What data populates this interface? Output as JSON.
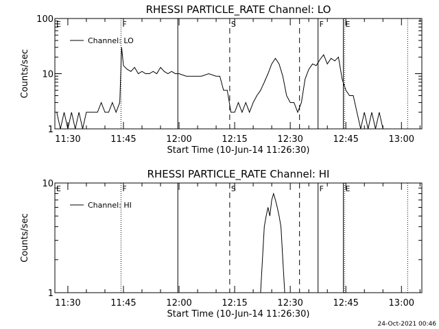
{
  "footer": {
    "timestamp": "24-Oct-2021 00:46"
  },
  "chart_data": [
    {
      "type": "line",
      "title": "RHESSI PARTICLE_RATE Channel: LO",
      "xlabel": "Start Time (10-Jun-14 11:26:30)",
      "ylabel": "Counts/sec",
      "y_scale": "log",
      "ylim": [
        1,
        100
      ],
      "y_ticks": [
        {
          "value": 1,
          "label": "1"
        },
        {
          "value": 10,
          "label": "10"
        },
        {
          "value": 100,
          "label": "100"
        }
      ],
      "xlim": [
        "11:26:30",
        "13:05:30"
      ],
      "x_ticks": [
        "11:30",
        "11:45",
        "12:00",
        "12:15",
        "12:30",
        "12:45",
        "13:00"
      ],
      "legend": {
        "position": "top-left"
      },
      "series": [
        {
          "name": "Channel: LO",
          "points": [
            [
              "11:27:00",
              2
            ],
            [
              "11:28:00",
              1
            ],
            [
              "11:29:00",
              2
            ],
            [
              "11:30:00",
              1
            ],
            [
              "11:31:00",
              2
            ],
            [
              "11:32:00",
              1
            ],
            [
              "11:33:00",
              2
            ],
            [
              "11:34:00",
              1
            ],
            [
              "11:35:00",
              2
            ],
            [
              "11:36:00",
              2
            ],
            [
              "11:37:00",
              2
            ],
            [
              "11:38:00",
              2
            ],
            [
              "11:39:00",
              3
            ],
            [
              "11:40:00",
              2
            ],
            [
              "11:41:00",
              2
            ],
            [
              "11:42:00",
              3
            ],
            [
              "11:43:00",
              2
            ],
            [
              "11:44:00",
              3
            ],
            [
              "11:44:30",
              30
            ],
            [
              "11:45:00",
              14
            ],
            [
              "11:46:00",
              12
            ],
            [
              "11:47:00",
              11
            ],
            [
              "11:48:00",
              13
            ],
            [
              "11:49:00",
              10
            ],
            [
              "11:50:00",
              11
            ],
            [
              "11:51:00",
              10
            ],
            [
              "11:52:00",
              10
            ],
            [
              "11:53:00",
              11
            ],
            [
              "11:54:00",
              10
            ],
            [
              "11:55:00",
              13
            ],
            [
              "11:56:00",
              11
            ],
            [
              "11:57:00",
              10
            ],
            [
              "11:58:00",
              11
            ],
            [
              "11:59:00",
              10
            ],
            [
              "12:00:00",
              10
            ],
            [
              "12:02:00",
              9
            ],
            [
              "12:04:00",
              9
            ],
            [
              "12:06:00",
              9
            ],
            [
              "12:08:00",
              10
            ],
            [
              "12:10:00",
              9
            ],
            [
              "12:11:00",
              9
            ],
            [
              "12:12:00",
              5
            ],
            [
              "12:13:00",
              5
            ],
            [
              "12:14:00",
              2
            ],
            [
              "12:15:00",
              2
            ],
            [
              "12:16:00",
              3
            ],
            [
              "12:17:00",
              2
            ],
            [
              "12:18:00",
              3
            ],
            [
              "12:19:00",
              2
            ],
            [
              "12:20:00",
              3
            ],
            [
              "12:21:00",
              4
            ],
            [
              "12:22:00",
              5
            ],
            [
              "12:23:00",
              7
            ],
            [
              "12:24:00",
              10
            ],
            [
              "12:25:00",
              15
            ],
            [
              "12:26:00",
              19
            ],
            [
              "12:27:00",
              15
            ],
            [
              "12:28:00",
              9
            ],
            [
              "12:29:00",
              4
            ],
            [
              "12:30:00",
              3
            ],
            [
              "12:31:00",
              3
            ],
            [
              "12:32:00",
              2
            ],
            [
              "12:33:00",
              3
            ],
            [
              "12:34:00",
              8
            ],
            [
              "12:35:00",
              12
            ],
            [
              "12:36:00",
              15
            ],
            [
              "12:37:00",
              14
            ],
            [
              "12:38:00",
              18
            ],
            [
              "12:39:00",
              22
            ],
            [
              "12:40:00",
              15
            ],
            [
              "12:41:00",
              19
            ],
            [
              "12:42:00",
              17
            ],
            [
              "12:43:00",
              20
            ],
            [
              "12:44:00",
              8
            ],
            [
              "12:45:00",
              5
            ],
            [
              "12:46:00",
              4
            ],
            [
              "12:47:00",
              4
            ],
            [
              "12:48:00",
              2
            ],
            [
              "12:49:00",
              1
            ],
            [
              "12:50:00",
              2
            ],
            [
              "12:51:00",
              1
            ],
            [
              "12:52:00",
              2
            ],
            [
              "12:53:00",
              1
            ],
            [
              "12:54:00",
              2
            ],
            [
              "12:55:00",
              1
            ]
          ]
        }
      ],
      "markers": [
        {
          "time": "11:44:20",
          "label": "F",
          "style": "dotted"
        },
        {
          "time": "11:59:40",
          "label": "",
          "style": "solid"
        },
        {
          "time": "12:13:40",
          "label": "S",
          "style": "dashed"
        },
        {
          "time": "12:32:30",
          "label": "",
          "style": "dashed"
        },
        {
          "time": "12:37:30",
          "label": "F",
          "style": "solid"
        },
        {
          "time": "12:44:30",
          "label": "E",
          "style": "dotted-solid"
        },
        {
          "time": "13:01:40",
          "label": "",
          "style": "dotted"
        },
        {
          "time": "11:26:30",
          "label": "E",
          "style": "none"
        }
      ]
    },
    {
      "type": "line",
      "title": "RHESSI PARTICLE_RATE Channel: HI",
      "xlabel": "Start Time (10-Jun-14 11:26:30)",
      "ylabel": "Counts/sec",
      "y_scale": "log",
      "ylim": [
        1,
        10
      ],
      "y_ticks": [
        {
          "value": 1,
          "label": "1"
        },
        {
          "value": 10,
          "label": "10"
        }
      ],
      "xlim": [
        "11:26:30",
        "13:05:30"
      ],
      "x_ticks": [
        "11:30",
        "11:45",
        "12:00",
        "12:15",
        "12:30",
        "12:45",
        "13:00"
      ],
      "legend": {
        "position": "top-left"
      },
      "series": [
        {
          "name": "Channel: HI",
          "points": [
            [
              "12:22:00",
              1
            ],
            [
              "12:22:30",
              2
            ],
            [
              "12:23:00",
              4
            ],
            [
              "12:23:30",
              5
            ],
            [
              "12:24:00",
              6
            ],
            [
              "12:24:30",
              5
            ],
            [
              "12:25:00",
              7
            ],
            [
              "12:25:30",
              8
            ],
            [
              "12:26:00",
              7
            ],
            [
              "12:26:30",
              6
            ],
            [
              "12:27:00",
              5
            ],
            [
              "12:27:30",
              4
            ],
            [
              "12:28:00",
              2
            ],
            [
              "12:28:30",
              1
            ]
          ]
        }
      ],
      "markers": [
        {
          "time": "11:44:20",
          "label": "F",
          "style": "dotted"
        },
        {
          "time": "11:59:40",
          "label": "",
          "style": "solid"
        },
        {
          "time": "12:13:40",
          "label": "S",
          "style": "dashed"
        },
        {
          "time": "12:32:30",
          "label": "",
          "style": "dashed"
        },
        {
          "time": "12:37:30",
          "label": "F",
          "style": "solid"
        },
        {
          "time": "12:44:30",
          "label": "E",
          "style": "dotted-solid"
        },
        {
          "time": "13:01:40",
          "label": "",
          "style": "dotted"
        },
        {
          "time": "11:26:30",
          "label": "E",
          "style": "none"
        }
      ]
    }
  ]
}
